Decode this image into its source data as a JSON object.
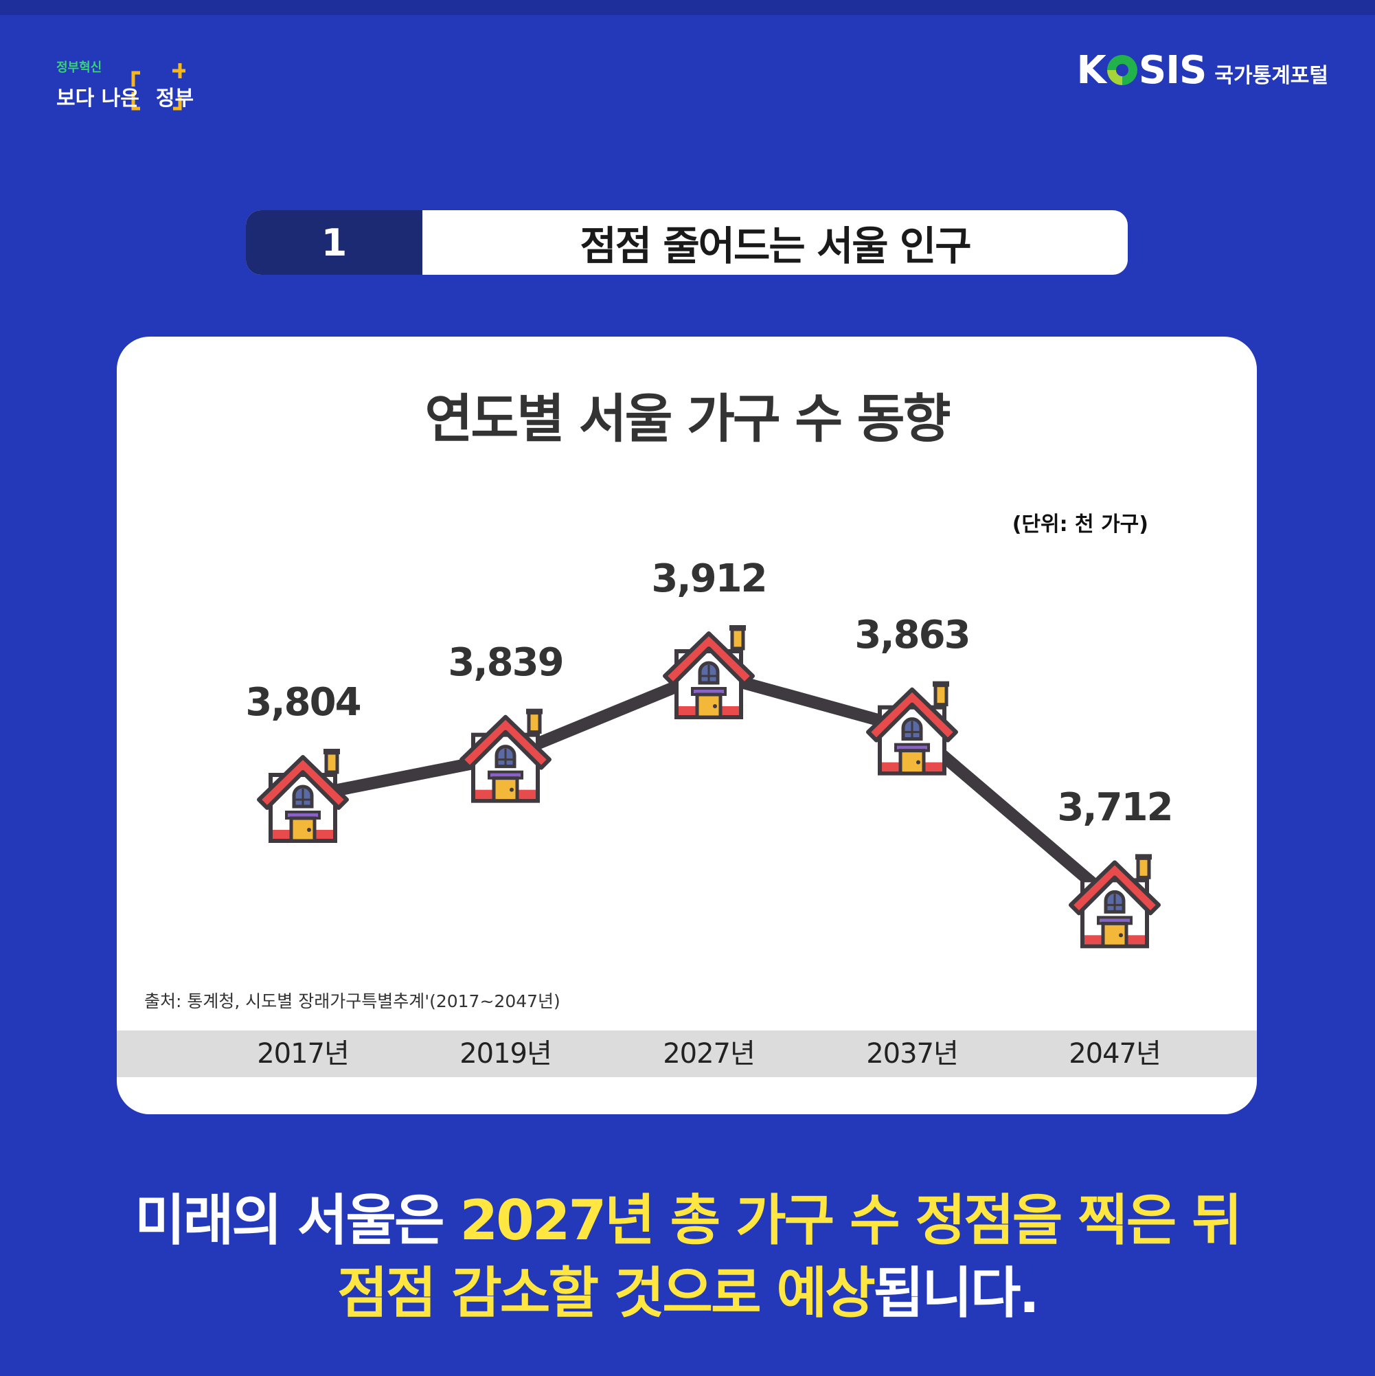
{
  "header": {
    "gov_logo_small": "정부혁신",
    "gov_logo_main": "보다 나은",
    "gov_logo_highlight": "정부",
    "kosis_brand_k": "K",
    "kosis_brand_rest": "SIS",
    "kosis_subtitle": "국가통계포털"
  },
  "section": {
    "number": "1",
    "title": "점점 줄어드는 서울 인구"
  },
  "chart_data": {
    "type": "line",
    "title": "연도별 서울 가구 수 동향",
    "unit_label": "(단위: 천 가구)",
    "categories": [
      "2017년",
      "2019년",
      "2027년",
      "2037년",
      "2047년"
    ],
    "values": [
      3804,
      3839,
      3912,
      3863,
      3712
    ],
    "value_labels": [
      "3,804",
      "3,839",
      "3,912",
      "3,863",
      "3,712"
    ],
    "ylim": [
      3690,
      3930
    ],
    "marker": "house-icon",
    "source": "출처: 통계청, 시도별 장래가구특별추계'(2017~2047년)",
    "colors": {
      "line": "#3e3a3f",
      "roof": "#e84b4b",
      "door": "#f3b73a",
      "wall": "#ffffff"
    }
  },
  "caption": {
    "line1_plain": "미래의 서울은 ",
    "line1_highlight": "2027년 총 가구 수 정점을 찍은 뒤",
    "line2_highlight": "점점 감소할 것으로 예상",
    "line2_plain": "됩니다."
  },
  "colors": {
    "background": "#2339b9",
    "highlight": "#ffe641",
    "section_badge": "#1b2a72"
  }
}
